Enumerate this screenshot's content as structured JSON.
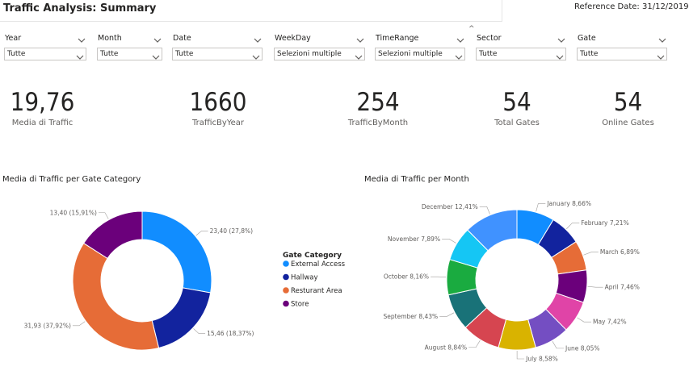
{
  "header": {
    "title": "Traffic Analysis: Summary",
    "reference_date": "Reference Date: 31/12/2019"
  },
  "slicers": [
    {
      "label": "Year",
      "value": "Tutte"
    },
    {
      "label": "Month",
      "value": "Tutte"
    },
    {
      "label": "Date",
      "value": "Tutte"
    },
    {
      "label": "WeekDay",
      "value": "Selezioni multiple"
    },
    {
      "label": "TimeRange",
      "value": "Selezioni multiple"
    },
    {
      "label": "Sector",
      "value": "Tutte"
    },
    {
      "label": "Gate",
      "value": "Tutte"
    }
  ],
  "kpis": [
    {
      "value": "19,76",
      "label": "Media di Traffic"
    },
    {
      "value": "1660",
      "label": "TrafficByYear"
    },
    {
      "value": "254",
      "label": "TrafficByMonth"
    },
    {
      "value": "54",
      "label": "Total Gates"
    },
    {
      "value": "54",
      "label": "Online Gates"
    }
  ],
  "icons": {
    "chevron": "chevron-down-icon",
    "collapse": "chevron-up-icon"
  },
  "chart_data": [
    {
      "type": "donut",
      "title": "Media di Traffic per Gate Category",
      "legend_title": "Gate Category",
      "legend_position": "right",
      "categories": [
        "External Access",
        "Hallway",
        "Resturant Area",
        "Store"
      ],
      "values": [
        23.4,
        15.46,
        31.93,
        13.4
      ],
      "labels": [
        "23,40 (27,8%)",
        "15,46 (18,37%)",
        "31,93 (37,92%)",
        "13,40 (15,91%)"
      ],
      "colors": [
        "#118dff",
        "#12239e",
        "#e66c37",
        "#6b007b"
      ]
    },
    {
      "type": "donut",
      "title": "Media di Traffic per Month",
      "categories": [
        "January",
        "February",
        "March",
        "April",
        "May",
        "June",
        "July",
        "August",
        "September",
        "October",
        "November",
        "December"
      ],
      "values": [
        8.66,
        7.21,
        6.89,
        7.46,
        7.42,
        8.05,
        8.58,
        8.84,
        8.43,
        8.16,
        7.89,
        12.41
      ],
      "labels": [
        "January 8,66%",
        "February 7,21%",
        "March 6,89%",
        "April 7,46%",
        "May 7,42%",
        "June 8,05%",
        "July 8,58%",
        "August 8,84%",
        "September 8,43%",
        "October 8,16%",
        "November 7,89%",
        "December 12,41%"
      ],
      "colors": [
        "#118dff",
        "#12239e",
        "#e66c37",
        "#6b007b",
        "#e044a7",
        "#744ec2",
        "#d9b300",
        "#d64550",
        "#197278",
        "#1aab40",
        "#15c6f4",
        "#4092ff"
      ]
    }
  ]
}
